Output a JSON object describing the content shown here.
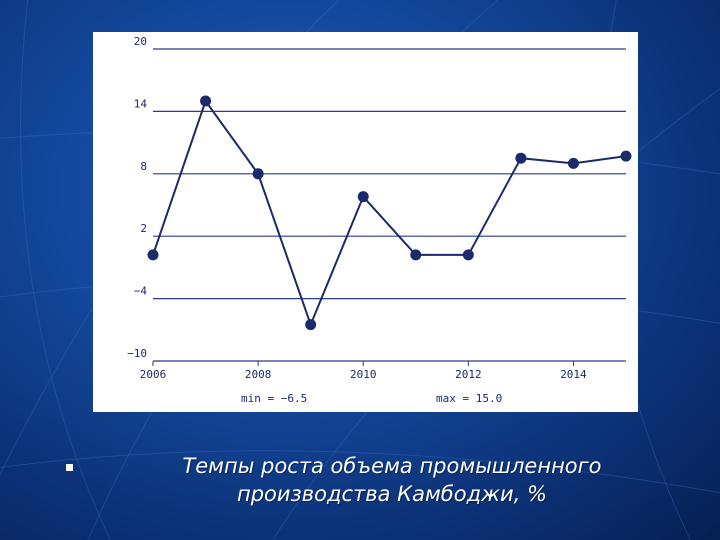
{
  "caption": {
    "line1": "Темпы роста объема промышленного",
    "line2": "производства Камбоджи, %"
  },
  "colors": {
    "series": "#1a2a6a",
    "grid": "#2b3a8a",
    "background": "#13479a"
  },
  "chart_data": {
    "type": "line",
    "title": "",
    "xlabel": "",
    "ylabel": "",
    "xlim": [
      2006,
      2015
    ],
    "ylim": [
      -10,
      20
    ],
    "yticks": [
      20,
      14,
      8,
      2,
      -4,
      -10
    ],
    "ytick_labels": [
      "20",
      "14",
      "8",
      "2",
      "−4",
      "−10"
    ],
    "xticks": [
      2006,
      2008,
      2010,
      2012,
      2014
    ],
    "xtick_labels": [
      "2006",
      "2008",
      "2010",
      "2012",
      "2014"
    ],
    "grid": "horizontal",
    "series": [
      {
        "x": [
          2006,
          2007,
          2008,
          2009,
          2010,
          2011,
          2012,
          2013,
          2014,
          2015
        ],
        "values": [
          0.2,
          15.0,
          8.0,
          -6.5,
          5.8,
          0.2,
          0.2,
          9.5,
          9.0,
          9.7
        ]
      }
    ],
    "annotations": {
      "min_label": "min = −6.5",
      "max_label": "max = 15.0"
    }
  }
}
